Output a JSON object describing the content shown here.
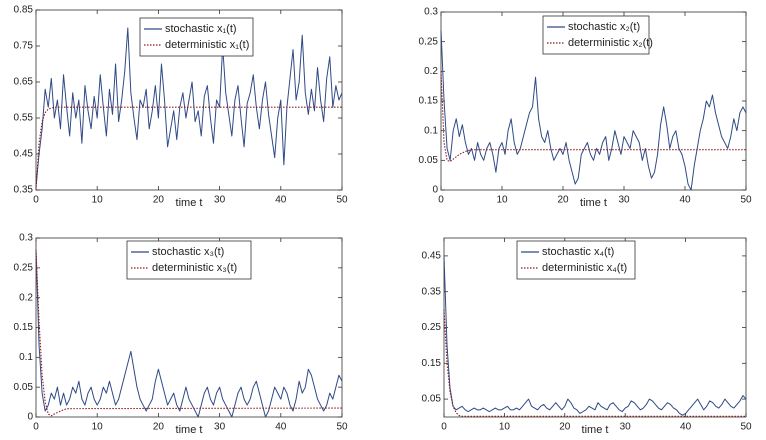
{
  "chart_data": [
    {
      "type": "line",
      "xlabel": "time t",
      "xlim": [
        0,
        50
      ],
      "xticks": [
        0,
        10,
        20,
        30,
        40,
        50
      ],
      "ylim": [
        0.35,
        0.85
      ],
      "yticks": [
        0.35,
        0.45,
        0.55,
        0.65,
        0.75,
        0.85
      ],
      "series": [
        {
          "name": "stochastic x₁(t)",
          "color": "#2f4a86",
          "style": "solid",
          "x": [
            0,
            0.5,
            1,
            1.5,
            2,
            2.5,
            3,
            3.5,
            4,
            4.5,
            5,
            5.5,
            6,
            6.5,
            7,
            7.5,
            8,
            8.5,
            9,
            9.5,
            10,
            10.5,
            11,
            11.5,
            12,
            12.5,
            13,
            13.5,
            14,
            14.5,
            15,
            15.5,
            16,
            16.5,
            17,
            17.5,
            18,
            18.5,
            19,
            19.5,
            20,
            20.5,
            21,
            21.5,
            22,
            22.5,
            23,
            23.5,
            24,
            24.5,
            25,
            25.5,
            26,
            26.5,
            27,
            27.5,
            28,
            28.5,
            29,
            29.5,
            30,
            30.5,
            31,
            31.5,
            32,
            32.5,
            33,
            33.5,
            34,
            34.5,
            35,
            35.5,
            36,
            36.5,
            37,
            37.5,
            38,
            38.5,
            39,
            39.5,
            40,
            40.5,
            41,
            41.5,
            42,
            42.5,
            43,
            43.5,
            44,
            44.5,
            45,
            45.5,
            46,
            46.5,
            47,
            47.5,
            48,
            48.5,
            49,
            49.5,
            50
          ],
          "values": [
            0.36,
            0.45,
            0.52,
            0.63,
            0.58,
            0.66,
            0.55,
            0.6,
            0.52,
            0.67,
            0.58,
            0.5,
            0.62,
            0.55,
            0.6,
            0.48,
            0.64,
            0.57,
            0.52,
            0.61,
            0.55,
            0.67,
            0.58,
            0.5,
            0.63,
            0.56,
            0.7,
            0.54,
            0.6,
            0.68,
            0.8,
            0.62,
            0.55,
            0.49,
            0.6,
            0.58,
            0.63,
            0.52,
            0.57,
            0.64,
            0.55,
            0.7,
            0.6,
            0.47,
            0.52,
            0.57,
            0.49,
            0.58,
            0.62,
            0.55,
            0.6,
            0.65,
            0.54,
            0.57,
            0.5,
            0.61,
            0.64,
            0.55,
            0.48,
            0.6,
            0.58,
            0.75,
            0.62,
            0.56,
            0.5,
            0.6,
            0.64,
            0.55,
            0.47,
            0.59,
            0.62,
            0.67,
            0.58,
            0.52,
            0.6,
            0.65,
            0.56,
            0.5,
            0.44,
            0.55,
            0.6,
            0.42,
            0.58,
            0.66,
            0.74,
            0.6,
            0.65,
            0.78,
            0.62,
            0.56,
            0.63,
            0.57,
            0.69,
            0.6,
            0.54,
            0.66,
            0.72,
            0.58,
            0.64,
            0.6,
            0.62
          ]
        },
        {
          "name": "deterministic x₁(t)",
          "color": "#8b1a1a",
          "style": "dotted",
          "x": [
            0,
            0.5,
            1,
            1.5,
            2,
            3,
            4,
            5,
            50
          ],
          "values": [
            0.35,
            0.48,
            0.54,
            0.565,
            0.575,
            0.58,
            0.58,
            0.58,
            0.58
          ]
        }
      ]
    },
    {
      "type": "line",
      "xlabel": "time t",
      "xlim": [
        0,
        50
      ],
      "xticks": [
        0,
        10,
        20,
        30,
        40,
        50
      ],
      "ylim": [
        0,
        0.3
      ],
      "yticks": [
        0,
        0.05,
        0.1,
        0.15,
        0.2,
        0.25,
        0.3
      ],
      "series": [
        {
          "name": "stochastic x₂(t)",
          "color": "#2f4a86",
          "style": "solid",
          "x": [
            0,
            0.5,
            1,
            1.5,
            2,
            2.5,
            3,
            3.5,
            4,
            4.5,
            5,
            5.5,
            6,
            6.5,
            7,
            7.5,
            8,
            8.5,
            9,
            9.5,
            10,
            10.5,
            11,
            11.5,
            12,
            12.5,
            13,
            13.5,
            14,
            14.5,
            15,
            15.5,
            16,
            16.5,
            17,
            17.5,
            18,
            18.5,
            19,
            19.5,
            20,
            20.5,
            21,
            21.5,
            22,
            22.5,
            23,
            23.5,
            24,
            24.5,
            25,
            25.5,
            26,
            26.5,
            27,
            27.5,
            28,
            28.5,
            29,
            29.5,
            30,
            30.5,
            31,
            31.5,
            32,
            32.5,
            33,
            33.5,
            34,
            34.5,
            35,
            35.5,
            36,
            36.5,
            37,
            37.5,
            38,
            38.5,
            39,
            39.5,
            40,
            40.5,
            41,
            41.5,
            42,
            42.5,
            43,
            43.5,
            44,
            44.5,
            45,
            45.5,
            46,
            46.5,
            47,
            47.5,
            48,
            48.5,
            49,
            49.5,
            50
          ],
          "values": [
            0.27,
            0.15,
            0.07,
            0.05,
            0.1,
            0.12,
            0.09,
            0.11,
            0.08,
            0.06,
            0.07,
            0.05,
            0.08,
            0.06,
            0.05,
            0.07,
            0.08,
            0.06,
            0.03,
            0.07,
            0.08,
            0.06,
            0.1,
            0.12,
            0.08,
            0.06,
            0.07,
            0.09,
            0.11,
            0.13,
            0.14,
            0.19,
            0.12,
            0.09,
            0.08,
            0.1,
            0.07,
            0.05,
            0.06,
            0.07,
            0.06,
            0.08,
            0.05,
            0.03,
            0.01,
            0.02,
            0.06,
            0.07,
            0.08,
            0.06,
            0.05,
            0.07,
            0.06,
            0.08,
            0.09,
            0.05,
            0.07,
            0.1,
            0.08,
            0.06,
            0.09,
            0.08,
            0.07,
            0.1,
            0.09,
            0.08,
            0.05,
            0.07,
            0.04,
            0.02,
            0.03,
            0.06,
            0.11,
            0.14,
            0.11,
            0.07,
            0.09,
            0.1,
            0.07,
            0.06,
            0.04,
            0.01,
            0.0,
            0.04,
            0.07,
            0.1,
            0.12,
            0.15,
            0.14,
            0.16,
            0.13,
            0.11,
            0.09,
            0.08,
            0.07,
            0.09,
            0.12,
            0.1,
            0.13,
            0.14,
            0.13
          ]
        },
        {
          "name": "deterministic x₂(t)",
          "color": "#8b1a1a",
          "style": "dotted",
          "x": [
            0,
            0.5,
            1,
            1.5,
            2,
            3,
            4,
            5,
            50
          ],
          "values": [
            0.2,
            0.08,
            0.05,
            0.048,
            0.052,
            0.06,
            0.065,
            0.068,
            0.068
          ]
        }
      ]
    },
    {
      "type": "line",
      "xlabel": "time t",
      "xlim": [
        0,
        50
      ],
      "xticks": [
        0,
        10,
        20,
        30,
        40,
        50
      ],
      "ylim": [
        0,
        0.3
      ],
      "yticks": [
        0,
        0.05,
        0.1,
        0.15,
        0.2,
        0.25,
        0.3
      ],
      "series": [
        {
          "name": "stochastic x₃(t)",
          "color": "#2f4a86",
          "style": "solid",
          "x": [
            0,
            0.5,
            1,
            1.5,
            2,
            2.5,
            3,
            3.5,
            4,
            4.5,
            5,
            5.5,
            6,
            6.5,
            7,
            7.5,
            8,
            8.5,
            9,
            9.5,
            10,
            10.5,
            11,
            11.5,
            12,
            12.5,
            13,
            13.5,
            14,
            14.5,
            15,
            15.5,
            16,
            16.5,
            17,
            17.5,
            18,
            18.5,
            19,
            19.5,
            20,
            20.5,
            21,
            21.5,
            22,
            22.5,
            23,
            23.5,
            24,
            24.5,
            25,
            25.5,
            26,
            26.5,
            27,
            27.5,
            28,
            28.5,
            29,
            29.5,
            30,
            30.5,
            31,
            31.5,
            32,
            32.5,
            33,
            33.5,
            34,
            34.5,
            35,
            35.5,
            36,
            36.5,
            37,
            37.5,
            38,
            38.5,
            39,
            39.5,
            40,
            40.5,
            41,
            41.5,
            42,
            42.5,
            43,
            43.5,
            44,
            44.5,
            45,
            45.5,
            46,
            46.5,
            47,
            47.5,
            48,
            48.5,
            49,
            49.5,
            50
          ],
          "values": [
            0.28,
            0.12,
            0.04,
            0.01,
            0.02,
            0.04,
            0.03,
            0.05,
            0.02,
            0.04,
            0.02,
            0.03,
            0.05,
            0.04,
            0.06,
            0.03,
            0.02,
            0.04,
            0.05,
            0.03,
            0.02,
            0.03,
            0.05,
            0.04,
            0.06,
            0.04,
            0.02,
            0.03,
            0.05,
            0.07,
            0.09,
            0.11,
            0.08,
            0.05,
            0.03,
            0.02,
            0.01,
            0.02,
            0.03,
            0.06,
            0.08,
            0.06,
            0.04,
            0.02,
            0.03,
            0.04,
            0.02,
            0.01,
            0.03,
            0.05,
            0.03,
            0.02,
            0.01,
            0.0,
            0.02,
            0.04,
            0.05,
            0.03,
            0.02,
            0.04,
            0.05,
            0.03,
            0.02,
            0.01,
            0.0,
            0.02,
            0.04,
            0.05,
            0.03,
            0.02,
            0.03,
            0.05,
            0.06,
            0.04,
            0.02,
            0.0,
            0.01,
            0.03,
            0.05,
            0.04,
            0.03,
            0.05,
            0.04,
            0.02,
            0.01,
            0.03,
            0.06,
            0.04,
            0.05,
            0.08,
            0.07,
            0.05,
            0.03,
            0.02,
            0.01,
            0.02,
            0.04,
            0.03,
            0.05,
            0.07,
            0.06
          ]
        },
        {
          "name": "deterministic x₃(t)",
          "color": "#8b1a1a",
          "style": "dotted",
          "x": [
            0,
            0.5,
            1,
            1.5,
            2,
            2.5,
            3,
            4,
            5,
            50
          ],
          "values": [
            0.28,
            0.16,
            0.07,
            0.025,
            0.005,
            0.002,
            0.005,
            0.01,
            0.014,
            0.015
          ]
        }
      ]
    },
    {
      "type": "line",
      "xlabel": "time t",
      "xlim": [
        0,
        50
      ],
      "xticks": [
        0,
        10,
        20,
        30,
        40,
        50
      ],
      "ylim": [
        0,
        0.5
      ],
      "yticks": [
        0.05,
        0.15,
        0.25,
        0.35,
        0.45
      ],
      "series": [
        {
          "name": "stochastic x₄(t)",
          "color": "#2f4a86",
          "style": "solid",
          "x": [
            0,
            0.5,
            1,
            1.5,
            2,
            2.5,
            3,
            3.5,
            4,
            4.5,
            5,
            5.5,
            6,
            6.5,
            7,
            7.5,
            8,
            8.5,
            9,
            9.5,
            10,
            10.5,
            11,
            11.5,
            12,
            12.5,
            13,
            13.5,
            14,
            14.5,
            15,
            15.5,
            16,
            16.5,
            17,
            17.5,
            18,
            18.5,
            19,
            19.5,
            20,
            20.5,
            21,
            21.5,
            22,
            22.5,
            23,
            23.5,
            24,
            24.5,
            25,
            25.5,
            26,
            26.5,
            27,
            27.5,
            28,
            28.5,
            29,
            29.5,
            30,
            30.5,
            31,
            31.5,
            32,
            32.5,
            33,
            33.5,
            34,
            34.5,
            35,
            35.5,
            36,
            36.5,
            37,
            37.5,
            38,
            38.5,
            39,
            39.5,
            40,
            40.5,
            41,
            41.5,
            42,
            42.5,
            43,
            43.5,
            44,
            44.5,
            45,
            45.5,
            46,
            46.5,
            47,
            47.5,
            48,
            48.5,
            49,
            49.5,
            50
          ],
          "values": [
            0.45,
            0.2,
            0.08,
            0.03,
            0.02,
            0.025,
            0.03,
            0.02,
            0.015,
            0.02,
            0.025,
            0.02,
            0.02,
            0.025,
            0.02,
            0.015,
            0.02,
            0.025,
            0.02,
            0.02,
            0.025,
            0.03,
            0.02,
            0.02,
            0.025,
            0.02,
            0.03,
            0.04,
            0.05,
            0.03,
            0.025,
            0.02,
            0.03,
            0.035,
            0.025,
            0.02,
            0.03,
            0.04,
            0.03,
            0.02,
            0.03,
            0.05,
            0.04,
            0.025,
            0.02,
            0.01,
            0.015,
            0.02,
            0.03,
            0.025,
            0.02,
            0.04,
            0.03,
            0.025,
            0.02,
            0.035,
            0.04,
            0.03,
            0.02,
            0.015,
            0.025,
            0.03,
            0.045,
            0.04,
            0.03,
            0.02,
            0.025,
            0.035,
            0.05,
            0.045,
            0.035,
            0.025,
            0.02,
            0.03,
            0.04,
            0.035,
            0.025,
            0.02,
            0.01,
            0.005,
            0.01,
            0.02,
            0.03,
            0.04,
            0.05,
            0.035,
            0.02,
            0.03,
            0.045,
            0.04,
            0.03,
            0.025,
            0.035,
            0.05,
            0.04,
            0.03,
            0.025,
            0.035,
            0.045,
            0.06,
            0.05
          ]
        },
        {
          "name": "deterministic x₄(t)",
          "color": "#8b1a1a",
          "style": "dotted",
          "x": [
            0,
            0.5,
            1,
            1.5,
            2,
            2.5,
            3,
            5,
            50
          ],
          "values": [
            0.3,
            0.15,
            0.07,
            0.03,
            0.012,
            0.004,
            0.002,
            0.002,
            0.002
          ]
        }
      ]
    }
  ]
}
